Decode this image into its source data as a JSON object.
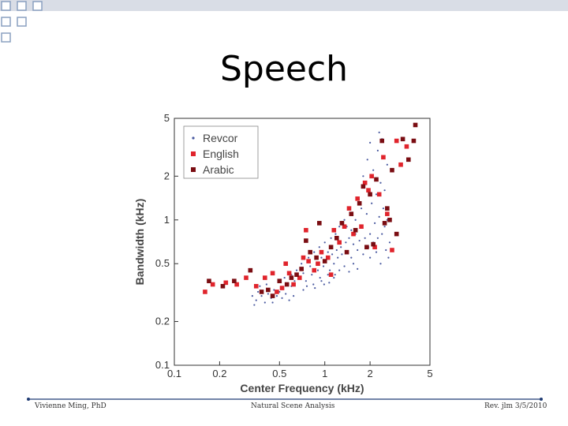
{
  "slide": {
    "title": "Speech",
    "footer_left": "Vivienne Ming, PhD",
    "footer_center": "Natural Scene Analysis",
    "footer_right": "Rev. jlm 3/5/2010"
  },
  "colors": {
    "deco_square_stroke": "#8aa0c0",
    "deco_bar": "#d9dde6",
    "footer_line": "#1f3b73",
    "revcor": "#4a5aa0",
    "english": "#e0242c",
    "arabic": "#7a0d12"
  },
  "chart_data": {
    "type": "scatter",
    "xlabel": "Center Frequency (kHz)",
    "ylabel": "Bandwidth (kHz)",
    "xscale": "log",
    "yscale": "log",
    "xlim": [
      0.1,
      5
    ],
    "ylim": [
      0.1,
      5
    ],
    "xticks": [
      0.1,
      0.2,
      0.5,
      1,
      2,
      5
    ],
    "xtick_labels": [
      "0.1",
      "0.2",
      "0.5",
      "1",
      "2",
      "5"
    ],
    "yticks": [
      0.1,
      0.2,
      0.5,
      1,
      2,
      5
    ],
    "ytick_labels": [
      "0.1",
      "0.2",
      "0.5",
      "1",
      "2",
      "5"
    ],
    "grid": false,
    "legend_position": "top-left",
    "series": [
      {
        "name": "Revcor",
        "marker": "dot",
        "points": [
          [
            0.33,
            0.3
          ],
          [
            0.35,
            0.28
          ],
          [
            0.36,
            0.32
          ],
          [
            0.38,
            0.3
          ],
          [
            0.4,
            0.27
          ],
          [
            0.42,
            0.31
          ],
          [
            0.44,
            0.29
          ],
          [
            0.46,
            0.33
          ],
          [
            0.48,
            0.3
          ],
          [
            0.5,
            0.32
          ],
          [
            0.52,
            0.29
          ],
          [
            0.55,
            0.31
          ],
          [
            0.58,
            0.28
          ],
          [
            0.6,
            0.35
          ],
          [
            0.62,
            0.3
          ],
          [
            0.34,
            0.26
          ],
          [
            0.37,
            0.35
          ],
          [
            0.41,
            0.36
          ],
          [
            0.45,
            0.27
          ],
          [
            0.5,
            0.38
          ],
          [
            0.54,
            0.4
          ],
          [
            0.57,
            0.36
          ],
          [
            0.6,
            0.42
          ],
          [
            0.63,
            0.38
          ],
          [
            0.65,
            0.45
          ],
          [
            0.67,
            0.4
          ],
          [
            0.7,
            0.5
          ],
          [
            0.72,
            0.43
          ],
          [
            0.75,
            0.38
          ],
          [
            0.78,
            0.55
          ],
          [
            0.8,
            0.48
          ],
          [
            0.82,
            0.42
          ],
          [
            0.85,
            0.6
          ],
          [
            0.88,
            0.5
          ],
          [
            0.9,
            0.45
          ],
          [
            0.92,
            0.65
          ],
          [
            0.95,
            0.55
          ],
          [
            0.98,
            0.48
          ],
          [
            1.0,
            0.7
          ],
          [
            1.02,
            0.52
          ],
          [
            1.05,
            0.6
          ],
          [
            1.08,
            0.45
          ],
          [
            1.1,
            0.75
          ],
          [
            1.12,
            0.58
          ],
          [
            1.15,
            0.5
          ],
          [
            1.18,
            0.8
          ],
          [
            1.2,
            0.62
          ],
          [
            1.22,
            0.55
          ],
          [
            1.25,
            0.9
          ],
          [
            1.28,
            0.65
          ],
          [
            1.3,
            0.58
          ],
          [
            1.35,
            1.0
          ],
          [
            1.38,
            0.7
          ],
          [
            1.4,
            0.6
          ],
          [
            1.45,
            0.75
          ],
          [
            1.5,
            0.55
          ],
          [
            1.55,
            0.68
          ],
          [
            1.6,
            0.8
          ],
          [
            1.65,
            0.62
          ],
          [
            1.7,
            0.72
          ],
          [
            1.75,
            0.9
          ],
          [
            1.8,
            0.58
          ],
          [
            1.85,
            0.75
          ],
          [
            1.9,
            1.1
          ],
          [
            1.95,
            0.65
          ],
          [
            2.0,
            0.8
          ],
          [
            2.05,
            1.3
          ],
          [
            2.1,
            0.7
          ],
          [
            2.15,
            0.95
          ],
          [
            2.2,
            1.5
          ],
          [
            2.25,
            0.75
          ],
          [
            2.3,
            1.05
          ],
          [
            2.35,
            1.8
          ],
          [
            2.4,
            0.8
          ],
          [
            2.45,
            1.2
          ],
          [
            2.5,
            1.6
          ],
          [
            2.55,
            0.62
          ],
          [
            2.6,
            1.0
          ],
          [
            2.65,
            0.55
          ],
          [
            2.7,
            0.7
          ],
          [
            1.92,
            2.6
          ],
          [
            2.1,
            2.2
          ],
          [
            2.25,
            3.0
          ],
          [
            2.4,
            3.6
          ],
          [
            2.6,
            2.4
          ],
          [
            2.0,
            3.4
          ],
          [
            2.3,
            4.0
          ],
          [
            1.8,
            2.0
          ],
          [
            0.95,
            0.38
          ],
          [
            1.05,
            0.42
          ],
          [
            1.15,
            0.4
          ],
          [
            1.25,
            0.45
          ],
          [
            1.35,
            0.48
          ],
          [
            1.45,
            0.44
          ],
          [
            1.55,
            0.5
          ],
          [
            1.65,
            0.46
          ],
          [
            0.72,
            0.33
          ],
          [
            0.76,
            0.35
          ],
          [
            0.84,
            0.36
          ],
          [
            0.86,
            0.34
          ],
          [
            0.93,
            0.4
          ],
          [
            0.99,
            0.36
          ],
          [
            1.07,
            0.37
          ],
          [
            1.17,
            0.42
          ],
          [
            2.0,
            0.55
          ],
          [
            2.2,
            0.6
          ],
          [
            2.35,
            0.5
          ],
          [
            2.5,
            0.9
          ],
          [
            1.75,
            1.2
          ],
          [
            1.6,
            1.0
          ],
          [
            1.5,
            0.85
          ],
          [
            1.4,
            0.9
          ]
        ]
      },
      {
        "name": "English",
        "marker": "square",
        "points": [
          [
            0.16,
            0.32
          ],
          [
            0.18,
            0.36
          ],
          [
            0.22,
            0.37
          ],
          [
            0.26,
            0.36
          ],
          [
            0.3,
            0.4
          ],
          [
            0.35,
            0.35
          ],
          [
            0.4,
            0.4
          ],
          [
            0.45,
            0.43
          ],
          [
            0.48,
            0.32
          ],
          [
            0.52,
            0.34
          ],
          [
            0.58,
            0.43
          ],
          [
            0.62,
            0.36
          ],
          [
            0.68,
            0.4
          ],
          [
            0.72,
            0.55
          ],
          [
            0.78,
            0.52
          ],
          [
            0.85,
            0.45
          ],
          [
            0.9,
            0.5
          ],
          [
            0.95,
            0.6
          ],
          [
            1.05,
            0.55
          ],
          [
            1.15,
            0.85
          ],
          [
            1.25,
            0.7
          ],
          [
            1.35,
            0.9
          ],
          [
            1.45,
            1.2
          ],
          [
            1.55,
            0.8
          ],
          [
            1.65,
            1.4
          ],
          [
            1.75,
            0.9
          ],
          [
            1.85,
            1.8
          ],
          [
            1.95,
            1.6
          ],
          [
            2.05,
            2.0
          ],
          [
            2.15,
            0.65
          ],
          [
            2.3,
            1.5
          ],
          [
            2.45,
            2.7
          ],
          [
            2.6,
            1.1
          ],
          [
            2.8,
            0.62
          ],
          [
            3.0,
            3.5
          ],
          [
            3.2,
            2.4
          ],
          [
            3.5,
            3.2
          ],
          [
            0.55,
            0.5
          ],
          [
            0.75,
            0.85
          ],
          [
            1.1,
            0.42
          ]
        ]
      },
      {
        "name": "Arabic",
        "marker": "square",
        "points": [
          [
            0.17,
            0.38
          ],
          [
            0.21,
            0.35
          ],
          [
            0.25,
            0.38
          ],
          [
            0.32,
            0.45
          ],
          [
            0.38,
            0.32
          ],
          [
            0.42,
            0.33
          ],
          [
            0.5,
            0.38
          ],
          [
            0.56,
            0.36
          ],
          [
            0.65,
            0.42
          ],
          [
            0.7,
            0.46
          ],
          [
            0.8,
            0.6
          ],
          [
            0.88,
            0.55
          ],
          [
            0.92,
            0.95
          ],
          [
            1.0,
            0.52
          ],
          [
            1.1,
            0.65
          ],
          [
            1.2,
            0.75
          ],
          [
            1.3,
            0.95
          ],
          [
            1.4,
            0.6
          ],
          [
            1.5,
            1.1
          ],
          [
            1.6,
            0.85
          ],
          [
            1.7,
            1.3
          ],
          [
            1.8,
            1.7
          ],
          [
            1.9,
            0.65
          ],
          [
            2.0,
            1.5
          ],
          [
            2.2,
            1.9
          ],
          [
            2.4,
            3.5
          ],
          [
            2.5,
            0.95
          ],
          [
            2.6,
            1.2
          ],
          [
            2.8,
            2.2
          ],
          [
            3.0,
            0.8
          ],
          [
            3.3,
            3.6
          ],
          [
            3.6,
            2.6
          ],
          [
            4.0,
            4.5
          ],
          [
            0.45,
            0.3
          ],
          [
            0.6,
            0.4
          ],
          [
            0.75,
            0.72
          ],
          [
            2.1,
            0.68
          ],
          [
            2.7,
            1.0
          ],
          [
            3.9,
            3.5
          ]
        ]
      }
    ]
  }
}
